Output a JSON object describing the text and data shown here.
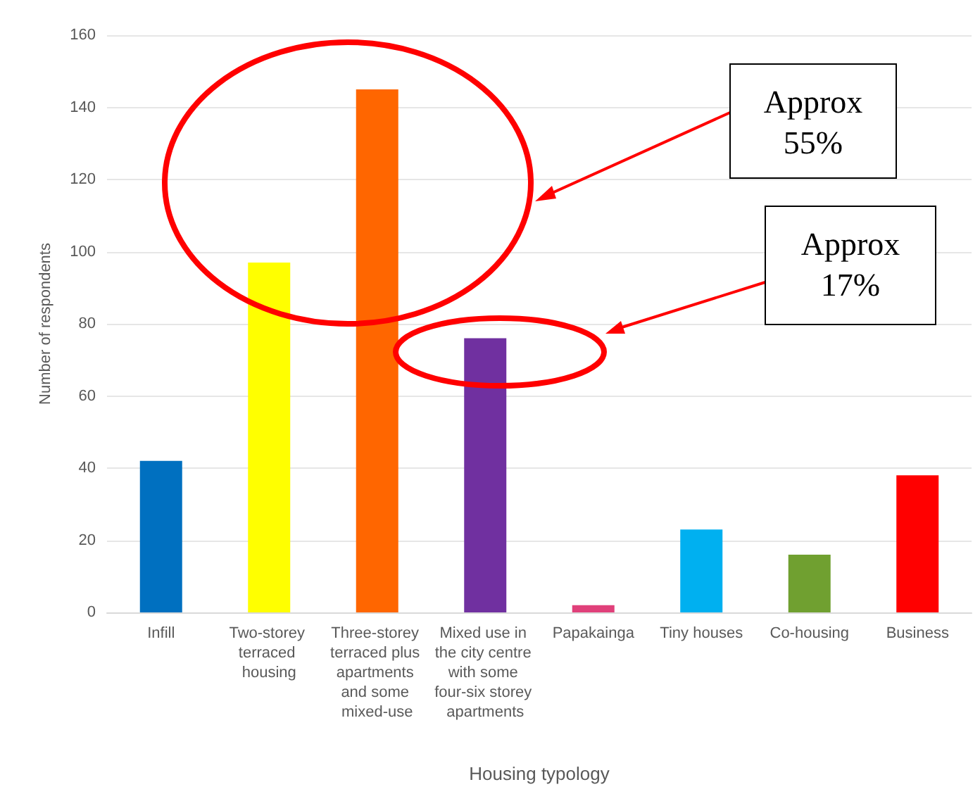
{
  "chart_data": {
    "type": "bar",
    "xlabel": "Housing typology",
    "ylabel": "Number of respondents",
    "categories": [
      "Infill",
      "Two-storey terraced housing",
      "Three-storey terraced plus apartments and some mixed-use",
      "Mixed use in the city centre with some four-six storey apartments",
      "Papakainga",
      "Tiny houses",
      "Co-housing",
      "Business"
    ],
    "values": [
      42,
      97,
      145,
      76,
      2,
      23,
      16,
      38
    ],
    "colors": [
      "#0070c0",
      "#ffff00",
      "#ff6600",
      "#7030a0",
      "#e0407a",
      "#00b0f0",
      "#70a030",
      "#ff0000"
    ],
    "ylim": [
      0,
      160
    ],
    "yticks": [
      0,
      20,
      40,
      60,
      80,
      100,
      120,
      140,
      160
    ],
    "grid": "y",
    "annotations": [
      "Approx 55%",
      "Approx 17%"
    ]
  }
}
